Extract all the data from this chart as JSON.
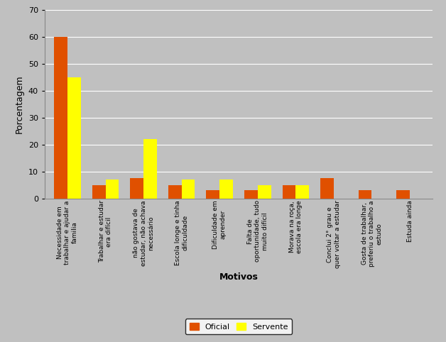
{
  "categories": [
    "Necessidade em\ntrabalhar e ajudar a\nfamilia",
    "Trabalhar e estudar\nera difícil",
    "não gostava de\nestudar, não achava\nnecessário",
    "Escola longe e tinha\ndificuldade",
    "Dificuldade em\naprender",
    "Falta de\noportunidade, tudo\nmuito difícil",
    "Morava na roça,\nescola era longe",
    "Conclui 2° grau e\nquer voltar a estudar",
    "Gosta de trabalhar,\npreferiu o trabalho a\nestudo",
    "Estuda ainda"
  ],
  "oficial": [
    60,
    5,
    7.5,
    5,
    3,
    3,
    5,
    7.5,
    3,
    3
  ],
  "servente": [
    45,
    7,
    22,
    7,
    7,
    5,
    5,
    0,
    0,
    0
  ],
  "bar_color_oficial": "#E05000",
  "bar_color_servente": "#FFFF00",
  "ylabel": "Porcentagem",
  "xlabel": "Motivos",
  "ylim": [
    0,
    70
  ],
  "yticks": [
    0,
    10,
    20,
    30,
    40,
    50,
    60,
    70
  ],
  "legend_oficial": "Oficial",
  "legend_servente": "Servente",
  "background_color": "#C0C0C0",
  "grid_color": "#FFFFFF",
  "bar_width": 0.35
}
